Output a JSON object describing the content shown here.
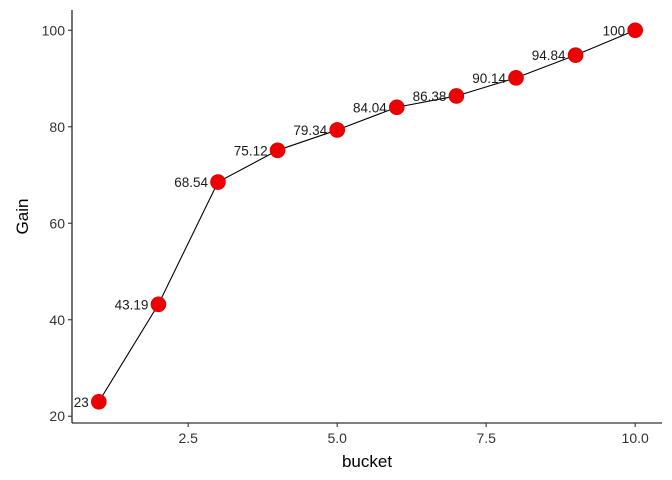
{
  "chart_data": {
    "type": "line",
    "title": "",
    "xlabel": "bucket",
    "ylabel": "Gain",
    "xlim": [
      0.55,
      10.45
    ],
    "ylim": [
      18.6,
      104.2
    ],
    "x_ticks": [
      2.5,
      5.0,
      7.5,
      10.0
    ],
    "x_tick_labels": [
      "2.5",
      "5.0",
      "7.5",
      "10.0"
    ],
    "y_ticks": [
      20,
      40,
      60,
      80,
      100
    ],
    "y_tick_labels": [
      "20",
      "40",
      "60",
      "80",
      "100"
    ],
    "grid": false,
    "point_color": "#ee0000",
    "line_color": "#000000",
    "series": [
      {
        "x": [
          1,
          2,
          3,
          4,
          5,
          6,
          7,
          8,
          9,
          10
        ],
        "values": [
          23,
          43.19,
          68.54,
          75.12,
          79.34,
          84.04,
          86.38,
          90.14,
          94.84,
          100
        ],
        "labels": [
          "23",
          "43.19",
          "68.54",
          "75.12",
          "79.34",
          "84.04",
          "86.38",
          "90.14",
          "94.84",
          "100"
        ]
      }
    ]
  }
}
